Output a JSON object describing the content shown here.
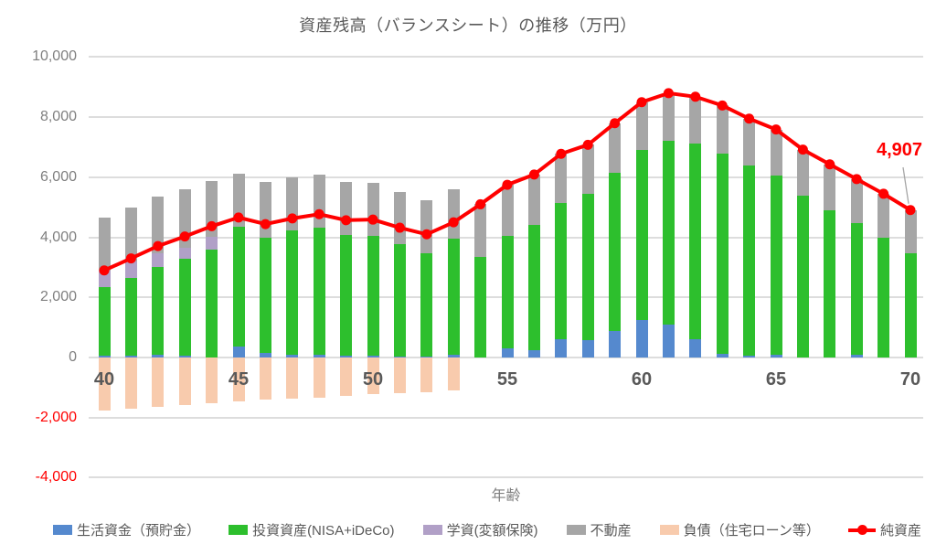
{
  "chart_data": {
    "type": "bar",
    "stacked": true,
    "title": "資産残高（バランスシート）の推移（万円）",
    "xlabel": "年齢",
    "x": [
      40,
      41,
      42,
      43,
      44,
      45,
      46,
      47,
      48,
      49,
      50,
      51,
      52,
      53,
      54,
      55,
      56,
      57,
      58,
      59,
      60,
      61,
      62,
      63,
      64,
      65,
      66,
      67,
      68,
      69,
      70
    ],
    "x_ticks": [
      40,
      45,
      50,
      55,
      60,
      65,
      70
    ],
    "ylim": [
      -4000,
      10000
    ],
    "y_ticks": [
      10000,
      8000,
      6000,
      4000,
      2000,
      0,
      -2000,
      -4000
    ],
    "grid": "horizontal-only",
    "legend_position": "bottom",
    "series": [
      {
        "key": "savings",
        "name": "生活資金（預貯金）",
        "type": "bar",
        "color": "#5589CE",
        "values": [
          50,
          60,
          80,
          60,
          0,
          360,
          150,
          100,
          80,
          60,
          50,
          40,
          30,
          100,
          0,
          300,
          250,
          600,
          570,
          880,
          1250,
          1100,
          600,
          130,
          50,
          80,
          0,
          0,
          80,
          0,
          0
        ]
      },
      {
        "key": "investment",
        "name": "投資資産(NISA+iDeCo)",
        "type": "bar",
        "color": "#2DBF2D",
        "values": [
          2300,
          2590,
          2940,
          3230,
          3600,
          3980,
          3850,
          4140,
          4250,
          4030,
          4010,
          3720,
          3430,
          3870,
          3350,
          3760,
          4170,
          4530,
          4880,
          5280,
          5650,
          6100,
          6510,
          6670,
          6340,
          5990,
          5380,
          4910,
          4400,
          4000,
          3470
        ]
      },
      {
        "key": "education",
        "name": "学資(変額保険)",
        "type": "bar",
        "color": "#B1A0C7",
        "values": [
          550,
          550,
          450,
          350,
          420,
          0,
          0,
          0,
          0,
          0,
          0,
          0,
          0,
          0,
          0,
          0,
          0,
          0,
          0,
          0,
          0,
          0,
          0,
          0,
          0,
          0,
          0,
          0,
          0,
          0,
          0
        ]
      },
      {
        "key": "realestate",
        "name": "不動産",
        "type": "bar",
        "color": "#A6A6A6",
        "values": [
          1750,
          1800,
          1880,
          1960,
          1860,
          1780,
          1850,
          1760,
          1770,
          1760,
          1760,
          1740,
          1790,
          1630,
          1750,
          1690,
          1670,
          1650,
          1630,
          1640,
          1600,
          1600,
          1570,
          1590,
          1560,
          1520,
          1540,
          1520,
          1460,
          1450,
          1437
        ]
      },
      {
        "key": "debt",
        "name": "負債（住宅ローン等）",
        "type": "bar",
        "color": "#F8CBAD",
        "values": [
          -1750,
          -1700,
          -1640,
          -1570,
          -1510,
          -1460,
          -1410,
          -1370,
          -1330,
          -1280,
          -1230,
          -1180,
          -1150,
          -1100,
          0,
          0,
          0,
          0,
          0,
          0,
          0,
          0,
          0,
          0,
          0,
          0,
          0,
          0,
          0,
          0,
          0
        ]
      },
      {
        "key": "networth",
        "name": "純資産",
        "type": "line",
        "color": "#FF0000",
        "values": [
          2900,
          3300,
          3710,
          4030,
          4370,
          4660,
          4440,
          4630,
          4770,
          4570,
          4590,
          4320,
          4100,
          4500,
          5100,
          5750,
          6090,
          6780,
          7080,
          7800,
          8500,
          8800,
          8680,
          8390,
          7950,
          7590,
          6920,
          6430,
          5940,
          5450,
          4907
        ]
      }
    ],
    "annotation": {
      "text": "4,907",
      "x": 70,
      "value": 4907,
      "color": "#FF0000"
    }
  },
  "colors": {
    "title_text": "#595959",
    "y_tick_text": "#7f7f7f",
    "y_tick_negative_text": "#FF0000",
    "x_tick_text": "#595959",
    "gridline": "#dddddd",
    "leader_line": "#a6a6a6",
    "background": "#ffffff"
  }
}
